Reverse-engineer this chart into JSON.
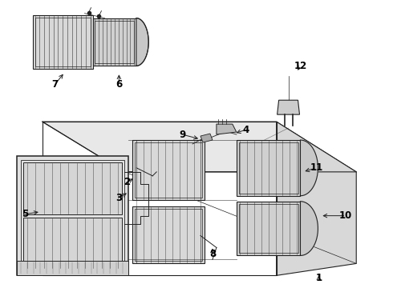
{
  "background_color": "#ffffff",
  "line_color": "#222222",
  "label_color": "#000000",
  "label_fontsize": 8.5,
  "fig_width": 4.9,
  "fig_height": 3.6,
  "dpi": 100,
  "gray_light": "#e8e8e8",
  "gray_mid": "#cccccc",
  "gray_dark": "#999999",
  "gray_fill": "#d8d8d8"
}
